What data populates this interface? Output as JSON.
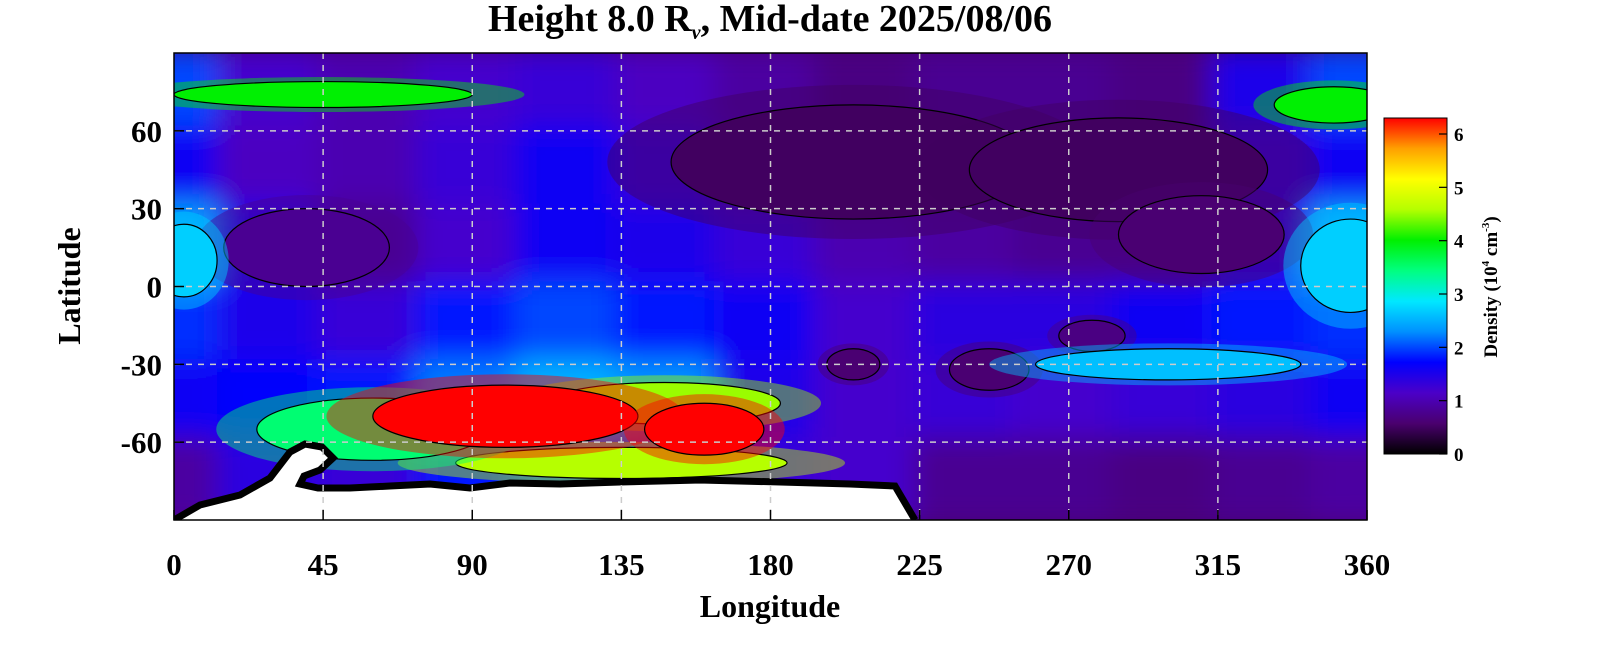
{
  "chart_data": {
    "type": "heatmap",
    "title": {
      "prefix": "Height 8.0 R",
      "subscript": "v",
      "suffix": ", Mid-date 2025/08/06"
    },
    "xlabel": "Longitude",
    "ylabel": "Latitude",
    "xlim": [
      0,
      360
    ],
    "ylim": [
      -90,
      90
    ],
    "x_ticks": [
      "0",
      "45",
      "90",
      "135",
      "180",
      "225",
      "270",
      "315",
      "360"
    ],
    "x_tick_values": [
      0,
      45,
      90,
      135,
      180,
      225,
      270,
      315,
      360
    ],
    "y_ticks": [
      "60",
      "30",
      "0",
      "-30",
      "-60"
    ],
    "y_tick_values": [
      60,
      30,
      0,
      -30,
      -60
    ],
    "grid": true,
    "colorbar": {
      "label_prefix": "Density (10",
      "label_exp1": "4",
      "label_mid": " cm",
      "label_exp2": "-3",
      "label_suffix": ")",
      "range": [
        0,
        6.3
      ],
      "ticks": [
        "0",
        "1",
        "2",
        "3",
        "4",
        "5",
        "6"
      ],
      "tick_values": [
        0,
        1,
        2,
        3,
        4,
        5,
        6
      ],
      "colors": [
        "#000000",
        "#4a006e",
        "#4b00c8",
        "#0000ff",
        "#0090ff",
        "#00e8ff",
        "#00ff80",
        "#00f000",
        "#b4ff00",
        "#ffff00",
        "#ffa000",
        "#ff0000"
      ]
    },
    "series": [
      {
        "type": "background-field",
        "grid_lon": [
          0,
          30,
          60,
          90,
          120,
          150,
          180,
          210,
          240,
          270,
          300,
          330,
          360
        ],
        "grid_lat": [
          75,
          45,
          15,
          -15,
          -45,
          -75
        ],
        "values": [
          [
            2.0,
            1.2,
            1.0,
            1.2,
            1.3,
            1.1,
            0.9,
            0.7,
            0.8,
            0.8,
            0.7,
            1.5,
            2.0
          ],
          [
            1.6,
            1.1,
            1.0,
            1.3,
            1.6,
            1.3,
            1.0,
            0.7,
            0.8,
            0.8,
            0.7,
            1.3,
            1.6
          ],
          [
            2.4,
            1.5,
            0.8,
            1.2,
            1.6,
            1.5,
            1.3,
            1.0,
            0.9,
            0.8,
            0.8,
            1.4,
            2.4
          ],
          [
            1.9,
            1.5,
            1.3,
            1.8,
            2.0,
            1.8,
            1.6,
            1.2,
            1.4,
            1.4,
            1.6,
            1.8,
            1.9
          ],
          [
            1.6,
            1.7,
            1.8,
            2.2,
            2.5,
            2.3,
            1.5,
            1.2,
            1.3,
            1.2,
            1.3,
            1.4,
            1.6
          ],
          [
            0.9,
            1.4,
            1.3,
            1.8,
            2.0,
            1.8,
            1.3,
            1.2,
            0.8,
            0.8,
            0.7,
            0.8,
            0.9
          ]
        ]
      },
      {
        "type": "features",
        "items": [
          {
            "lon": 40,
            "lat": 15,
            "value": 0.8,
            "rlon": 25,
            "rlat": 15
          },
          {
            "lon": 205,
            "lat": 48,
            "value": 0.5,
            "rlon": 55,
            "rlat": 22
          },
          {
            "lon": 285,
            "lat": 45,
            "value": 0.5,
            "rlon": 45,
            "rlat": 20
          },
          {
            "lon": 310,
            "lat": 20,
            "value": 0.6,
            "rlon": 25,
            "rlat": 15
          },
          {
            "lon": 355,
            "lat": 8,
            "value": 2.7,
            "rlon": 15,
            "rlat": 18
          },
          {
            "lon": 3,
            "lat": 10,
            "value": 2.7,
            "rlon": 10,
            "rlat": 14
          },
          {
            "lon": 45,
            "lat": 74,
            "value": 4.0,
            "rlon": 45,
            "rlat": 5
          },
          {
            "lon": 350,
            "lat": 70,
            "value": 4.0,
            "rlon": 18,
            "rlat": 7
          },
          {
            "lon": 205,
            "lat": -30,
            "value": 0.6,
            "rlon": 8,
            "rlat": 6
          },
          {
            "lon": 246,
            "lat": -32,
            "value": 0.6,
            "rlon": 12,
            "rlat": 8
          },
          {
            "lon": 277,
            "lat": -19,
            "value": 0.7,
            "rlon": 10,
            "rlat": 6
          },
          {
            "lon": 300,
            "lat": -30,
            "value": 2.6,
            "rlon": 40,
            "rlat": 6
          },
          {
            "lon": 148,
            "lat": -45,
            "value": 4.5,
            "rlon": 35,
            "rlat": 8
          },
          {
            "lon": 135,
            "lat": -68,
            "value": 4.6,
            "rlon": 50,
            "rlat": 6
          },
          {
            "lon": 60,
            "lat": -55,
            "value": 3.5,
            "rlon": 35,
            "rlat": 12
          },
          {
            "lon": 100,
            "lat": -50,
            "value": 6.3,
            "rlon": 40,
            "rlat": 12
          },
          {
            "lon": 160,
            "lat": -55,
            "value": 6.3,
            "rlon": 18,
            "rlat": 10
          }
        ]
      }
    ]
  }
}
